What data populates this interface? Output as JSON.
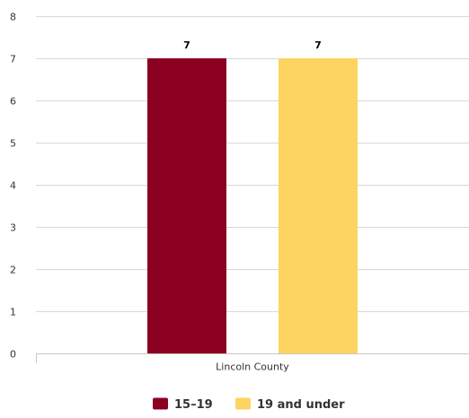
{
  "chart_data": {
    "type": "bar",
    "title": "",
    "xlabel": "",
    "ylabel": "",
    "categories": [
      "Lincoln County"
    ],
    "ylim": [
      0,
      8
    ],
    "yticks": [
      0,
      1,
      2,
      3,
      4,
      5,
      6,
      7,
      8
    ],
    "grid": true,
    "legend_position": "bottom",
    "series": [
      {
        "name": "15–19",
        "values": [
          7
        ],
        "color": "#8b0021",
        "data_labels": [
          "7"
        ]
      },
      {
        "name": "19 and under",
        "values": [
          7
        ],
        "color": "#fdd460",
        "data_labels": [
          "7"
        ]
      }
    ]
  }
}
